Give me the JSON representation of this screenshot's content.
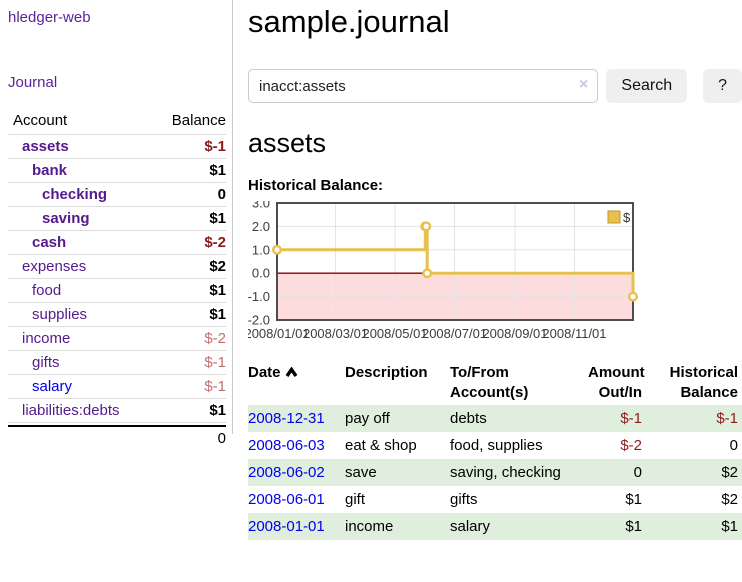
{
  "sidebar": {
    "app_title": "hledger-web",
    "nav_journal": "Journal",
    "accounts_table": {
      "headers": [
        "Account",
        "Balance"
      ],
      "rows": [
        {
          "name": "assets",
          "depth": 1,
          "bold": true,
          "balance": "$-1",
          "negative": true
        },
        {
          "name": "bank",
          "depth": 2,
          "bold": true,
          "balance": "$1"
        },
        {
          "name": "checking",
          "depth": 3,
          "bold": true,
          "balance": "0"
        },
        {
          "name": "saving",
          "depth": 3,
          "bold": true,
          "balance": "$1"
        },
        {
          "name": "cash",
          "depth": 2,
          "bold": true,
          "balance": "$-2",
          "negative": true
        },
        {
          "name": "expenses",
          "depth": 1,
          "bold": false,
          "balance": "$2"
        },
        {
          "name": "food",
          "depth": 2,
          "bold": false,
          "balance": "$1"
        },
        {
          "name": "supplies",
          "depth": 2,
          "bold": false,
          "balance": "$1"
        },
        {
          "name": "income",
          "depth": 1,
          "bold": false,
          "balance": "$-2",
          "negative": true,
          "muted": true
        },
        {
          "name": "gifts",
          "depth": 2,
          "bold": false,
          "balance": "$-1",
          "negative": true,
          "muted": true
        },
        {
          "name": "salary",
          "depth": 2,
          "bold": false,
          "balance": "$-1",
          "negative": true,
          "muted": true,
          "link_color": "blue"
        },
        {
          "name": "liabilities:debts",
          "depth": 1,
          "bold": false,
          "balance": "$1"
        }
      ],
      "total": "0"
    }
  },
  "main": {
    "title": "sample.journal",
    "search": {
      "value": "inacct:assets",
      "clear_icon": "×",
      "search_label": "Search",
      "help_label": "?"
    },
    "account_heading": "assets",
    "chart_label": "Historical Balance:"
  },
  "chart_data": {
    "type": "line",
    "step": true,
    "title": "Historical Balance:",
    "legend": {
      "label": "$",
      "position": "top-right"
    },
    "series": [
      {
        "name": "$",
        "color": "#e8c050",
        "points": [
          {
            "date": "2008-01-01",
            "value": 1
          },
          {
            "date": "2008-06-01",
            "value": 2
          },
          {
            "date": "2008-06-02",
            "value": 2
          },
          {
            "date": "2008-06-03",
            "value": 0
          },
          {
            "date": "2008-12-31",
            "value": -1
          }
        ]
      }
    ],
    "x_range": [
      "2008-01-01",
      "2008-12-31"
    ],
    "ylim": [
      -2,
      3
    ],
    "yticks": [
      "3.0",
      "2.0",
      "1.0",
      "0.0",
      "-1.0",
      "-2.0"
    ],
    "xticks": [
      {
        "date": "2008-01-01",
        "label": "2008/01/01"
      },
      {
        "date": "2008-03-01",
        "label": "2008/03/01"
      },
      {
        "date": "2008-05-01",
        "label": "2008/05/01"
      },
      {
        "date": "2008-07-01",
        "label": "2008/07/01"
      },
      {
        "date": "2008-09-01",
        "label": "2008/09/01"
      },
      {
        "date": "2008-11-01",
        "label": "2008/11/01"
      }
    ],
    "grid": true,
    "zero_line_color": "#8b0000",
    "negative_region_color": "#fcdcdc",
    "plot_border_color": "#4d4d4d",
    "gridline_color": "#e3e3e3"
  },
  "transactions": {
    "headers": {
      "date": "Date",
      "description": "Description",
      "account": [
        "To/From",
        "Account(s)"
      ],
      "amount": [
        "Amount",
        "Out/In"
      ],
      "balance": [
        "Historical",
        "Balance"
      ]
    },
    "rows": [
      {
        "date": "2008-12-31",
        "description": "pay off",
        "accounts": "debts",
        "amount": "$-1",
        "amount_negative": true,
        "balance": "$-1",
        "balance_negative": true
      },
      {
        "date": "2008-06-03",
        "description": "eat & shop",
        "accounts": "food, supplies",
        "amount": "$-2",
        "amount_negative": true,
        "balance": "0"
      },
      {
        "date": "2008-06-02",
        "description": "save",
        "accounts": "saving, checking",
        "amount": "0",
        "balance": "$2"
      },
      {
        "date": "2008-06-01",
        "description": "gift",
        "accounts": "gifts",
        "amount": "$1",
        "balance": "$2"
      },
      {
        "date": "2008-01-01",
        "description": "income",
        "accounts": "salary",
        "amount": "$1",
        "balance": "$1"
      }
    ]
  }
}
